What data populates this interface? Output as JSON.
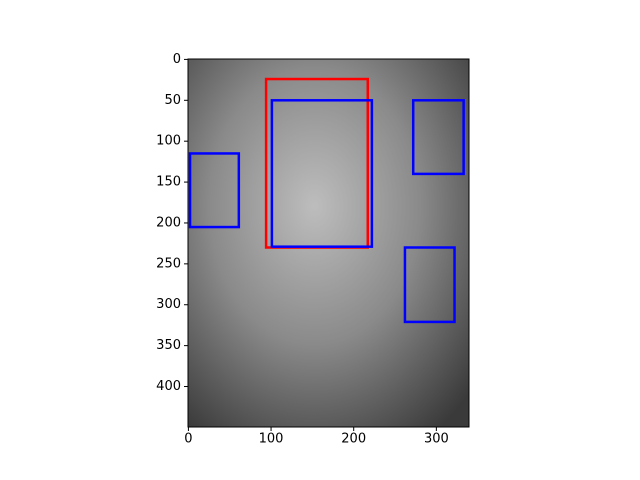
{
  "chart_data": {
    "type": "image",
    "xlim": [
      -0.5,
      339.5
    ],
    "ylim": [
      449.5,
      -0.5
    ],
    "xticks": [
      0,
      100,
      200,
      300
    ],
    "yticks": [
      0,
      50,
      100,
      150,
      200,
      250,
      300,
      350,
      400
    ],
    "rectangles": [
      {
        "color": "#ff0000",
        "x": 94,
        "y": 24,
        "width": 123,
        "height": 206
      },
      {
        "color": "#0000ff",
        "x": 101,
        "y": 50,
        "width": 121,
        "height": 179
      },
      {
        "color": "#0000ff",
        "x": 2,
        "y": 115,
        "width": 59,
        "height": 90
      },
      {
        "color": "#0000ff",
        "x": 272,
        "y": 50,
        "width": 61,
        "height": 90
      },
      {
        "color": "#0000ff",
        "x": 262,
        "y": 230,
        "width": 60,
        "height": 91
      }
    ]
  }
}
